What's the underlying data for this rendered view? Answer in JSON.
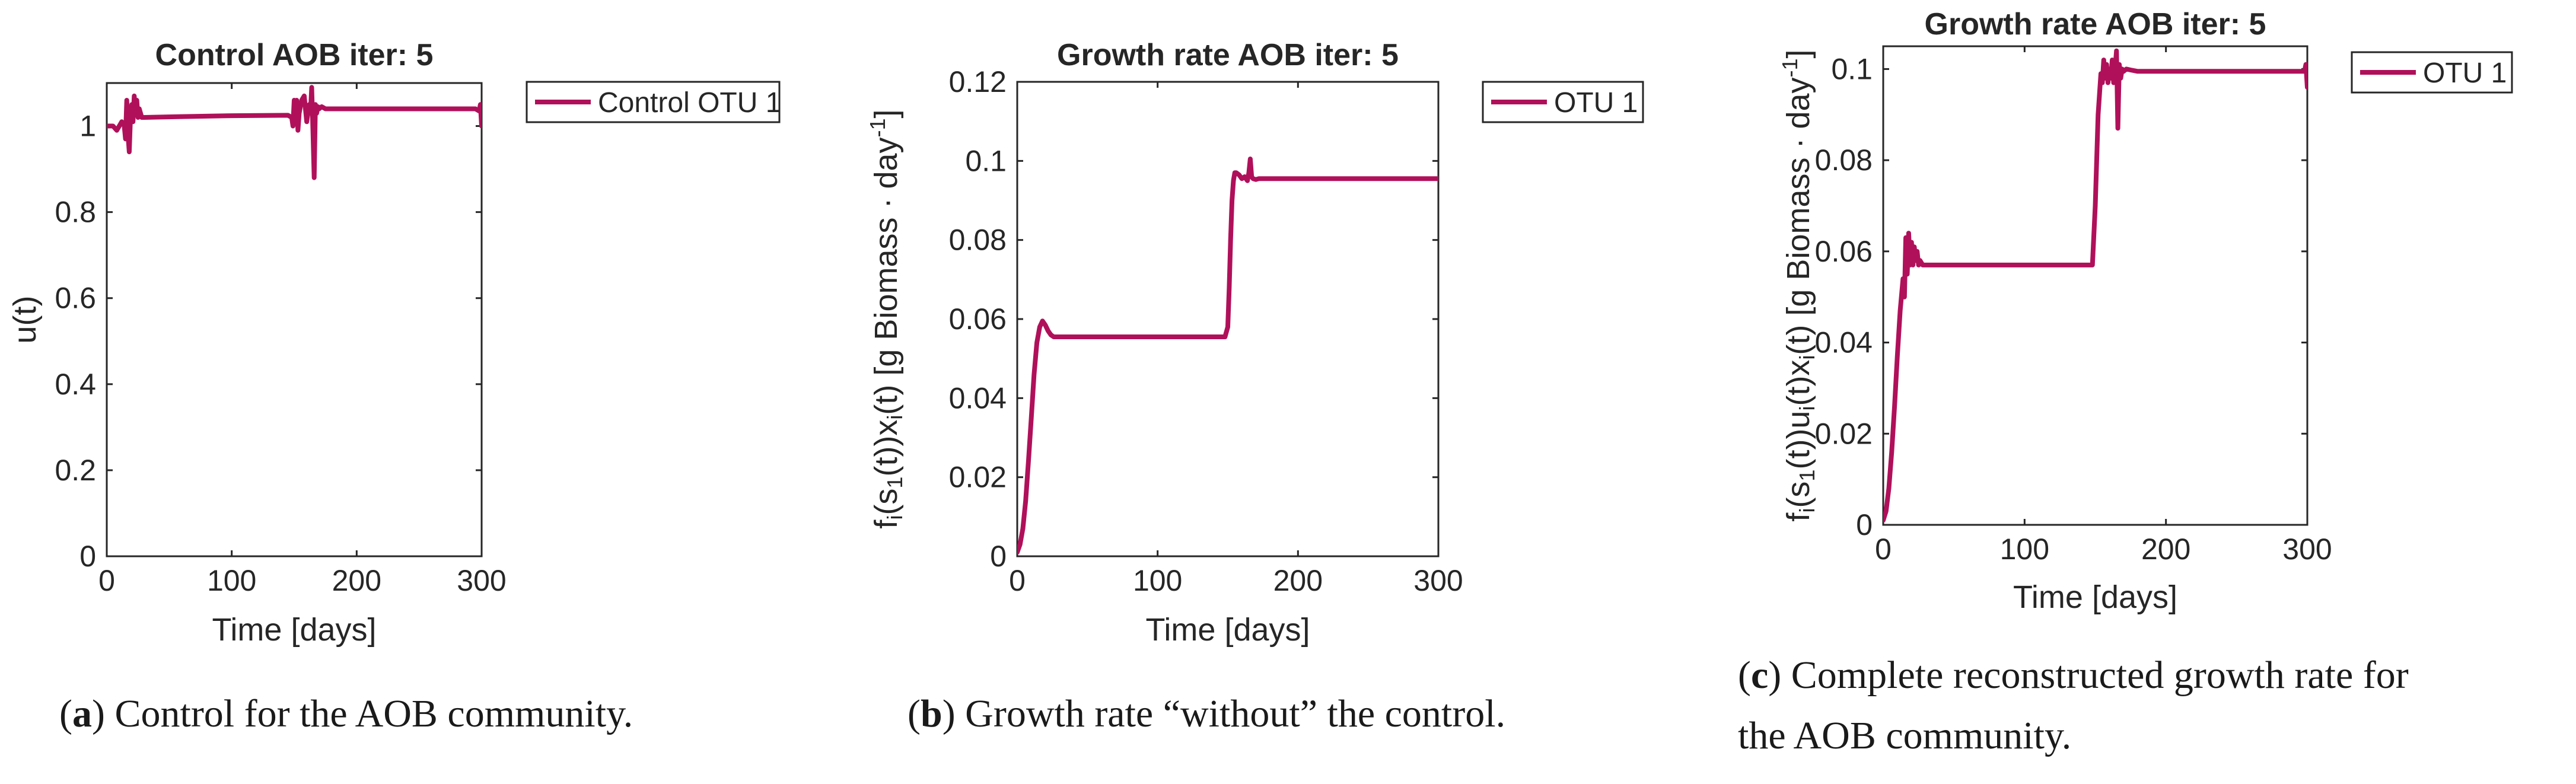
{
  "style": {
    "line_color": "#B0105A",
    "axis_color": "#262626",
    "text_color": "#262626"
  },
  "chart_data": [
    {
      "type": "line",
      "title": "Control AOB iter: 5",
      "xlabel": "Time [days]",
      "ylabel": "u(t)",
      "xlim": [
        0,
        300
      ],
      "ylim": [
        0,
        1.1
      ],
      "xticks": [
        0,
        100,
        200,
        300
      ],
      "xtick_labels": [
        "0",
        "100",
        "200",
        "300"
      ],
      "yticks": [
        0,
        0.2,
        0.4,
        0.6,
        0.8,
        1
      ],
      "ytick_labels": [
        "0",
        "0.2",
        "0.4",
        "0.6",
        "0.8",
        "1"
      ],
      "legend": [
        "Control OTU 1"
      ],
      "caption_label": "a",
      "caption_text": ") Control for the AOB community.",
      "series": [
        {
          "name": "Control OTU 1",
          "x": [
            0,
            5,
            8,
            10,
            12,
            14,
            15,
            16,
            17,
            18,
            19,
            20,
            21,
            22,
            23,
            24,
            25,
            26,
            28,
            30,
            60,
            100,
            145,
            148,
            149,
            150,
            151,
            152,
            153,
            154,
            156,
            158,
            160,
            162,
            163,
            164,
            165,
            166,
            167,
            168,
            169,
            170,
            172,
            175,
            180,
            200,
            250,
            295,
            298,
            299,
            300
          ],
          "y": [
            1.0,
            1.0,
            0.99,
            1.0,
            1.01,
            1.0,
            0.97,
            1.06,
            0.98,
            0.94,
            1.02,
            1.05,
            1.01,
            1.07,
            1.03,
            1.06,
            1.02,
            1.04,
            1.02,
            1.02,
            1.022,
            1.024,
            1.025,
            1.02,
            1.0,
            1.06,
            1.01,
            1.06,
            0.99,
            1.03,
            1.06,
            1.07,
            1.01,
            1.05,
            1.03,
            1.09,
            0.99,
            0.88,
            1.05,
            1.03,
            1.045,
            1.04,
            1.045,
            1.04,
            1.04,
            1.04,
            1.04,
            1.04,
            1.035,
            1.05,
            1.0
          ]
        }
      ]
    },
    {
      "type": "line",
      "title": "Growth rate AOB iter: 5",
      "xlabel": "Time [days]",
      "ylabel_parts": [
        "f",
        "i",
        "(s",
        "1",
        "(t))x",
        "i",
        "(t) [g Biomass · day",
        "-1",
        "]"
      ],
      "xlim": [
        0,
        300
      ],
      "ylim": [
        0,
        0.12
      ],
      "xticks": [
        0,
        100,
        200,
        300
      ],
      "xtick_labels": [
        "0",
        "100",
        "200",
        "300"
      ],
      "yticks": [
        0,
        0.02,
        0.04,
        0.06,
        0.08,
        0.1,
        0.12
      ],
      "ytick_labels": [
        "0",
        "0.02",
        "0.04",
        "0.06",
        "0.08",
        "0.1",
        "0.12"
      ],
      "legend": [
        "OTU 1"
      ],
      "caption_label": "b",
      "caption_text": ") Growth rate “without” the control.",
      "series": [
        {
          "name": "OTU 1",
          "x": [
            0,
            2,
            4,
            6,
            8,
            10,
            12,
            14,
            16,
            18,
            20,
            22,
            24,
            26,
            28,
            30,
            50,
            100,
            148,
            150,
            151,
            152,
            153,
            154,
            155,
            156,
            158,
            160,
            162,
            164,
            165,
            166,
            167,
            168,
            170,
            172,
            175,
            180,
            200,
            250,
            300
          ],
          "y": [
            0.001,
            0.003,
            0.007,
            0.014,
            0.024,
            0.035,
            0.046,
            0.054,
            0.058,
            0.0595,
            0.0585,
            0.057,
            0.056,
            0.0555,
            0.0555,
            0.0555,
            0.0555,
            0.0555,
            0.0555,
            0.058,
            0.068,
            0.08,
            0.09,
            0.095,
            0.097,
            0.097,
            0.0965,
            0.0955,
            0.096,
            0.095,
            0.097,
            0.1005,
            0.096,
            0.0955,
            0.0953,
            0.0955,
            0.0955,
            0.0955,
            0.0955,
            0.0955,
            0.0955
          ]
        }
      ]
    },
    {
      "type": "line",
      "title": "Growth rate AOB iter: 5",
      "xlabel": "Time [days]",
      "ylabel_parts": [
        "f",
        "i",
        "(s",
        "1",
        "(t))u",
        "i",
        "(t)x",
        "i",
        "(t)  [g Biomass · day",
        "-1",
        "]"
      ],
      "xlim": [
        0,
        300
      ],
      "ylim": [
        0,
        0.105
      ],
      "xticks": [
        0,
        100,
        200,
        300
      ],
      "xtick_labels": [
        "0",
        "100",
        "200",
        "300"
      ],
      "yticks": [
        0,
        0.02,
        0.04,
        0.06,
        0.08,
        0.1
      ],
      "ytick_labels": [
        "0",
        "0.02",
        "0.04",
        "0.06",
        "0.08",
        "0.1"
      ],
      "legend": [
        "OTU 1"
      ],
      "caption_label": "c",
      "caption_text": ") Complete reconstructed growth rate for",
      "caption_text_2": "the AOB community.",
      "series": [
        {
          "name": "OTU 1",
          "x": [
            0,
            2,
            4,
            6,
            8,
            10,
            12,
            14,
            15,
            16,
            17,
            18,
            19,
            20,
            21,
            22,
            23,
            24,
            25,
            26,
            28,
            30,
            60,
            100,
            148,
            150,
            152,
            154,
            155,
            156,
            157,
            158,
            159,
            160,
            161,
            162,
            163,
            164,
            165,
            166,
            167,
            168,
            169,
            170,
            172,
            175,
            180,
            200,
            250,
            298,
            299,
            300
          ],
          "y": [
            0.001,
            0.003,
            0.008,
            0.016,
            0.026,
            0.037,
            0.047,
            0.054,
            0.05,
            0.063,
            0.055,
            0.064,
            0.057,
            0.062,
            0.057,
            0.061,
            0.058,
            0.06,
            0.057,
            0.058,
            0.057,
            0.057,
            0.057,
            0.057,
            0.057,
            0.07,
            0.09,
            0.099,
            0.097,
            0.102,
            0.098,
            0.101,
            0.097,
            0.1,
            0.098,
            0.102,
            0.097,
            0.1,
            0.104,
            0.087,
            0.101,
            0.098,
            0.1,
            0.0995,
            0.1,
            0.0998,
            0.0995,
            0.0995,
            0.0995,
            0.0995,
            0.101,
            0.096
          ]
        }
      ]
    }
  ]
}
